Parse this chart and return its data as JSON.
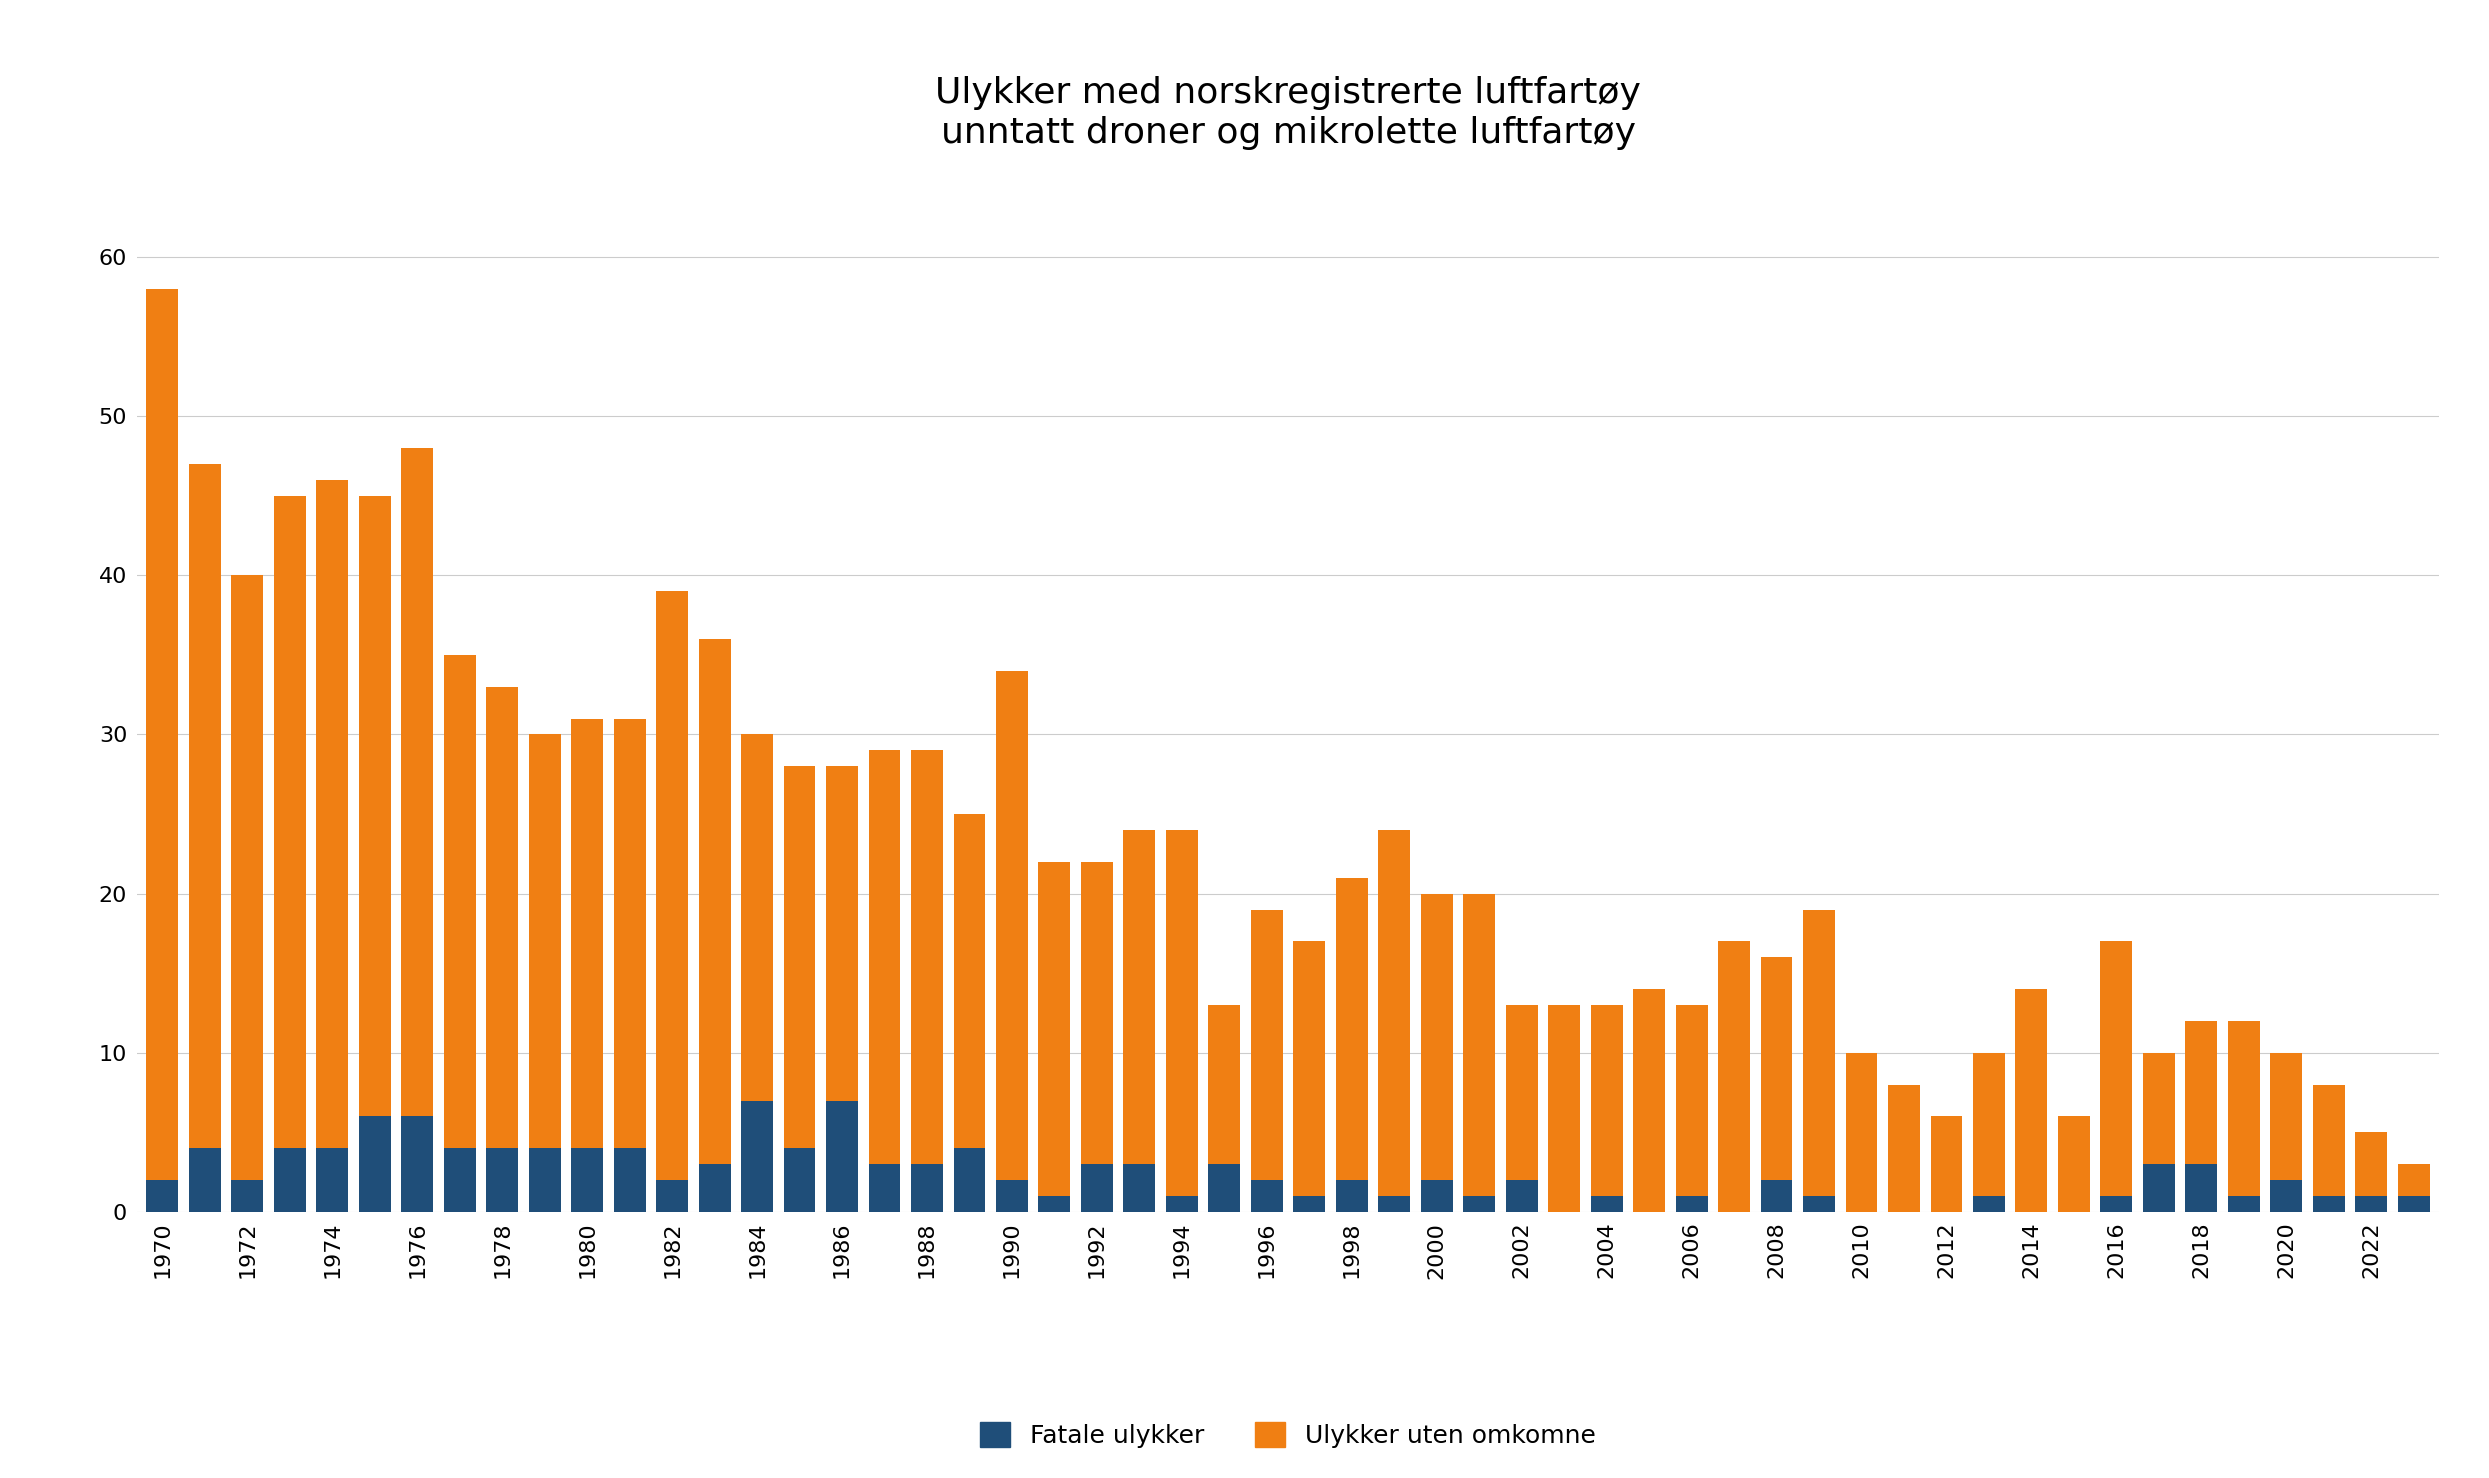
{
  "title": "Ulykker med norskregistrerte luftfartøy\nunntatt droner og mikrolette luftfartøy",
  "years": [
    1970,
    1971,
    1972,
    1973,
    1974,
    1975,
    1976,
    1977,
    1978,
    1979,
    1980,
    1981,
    1982,
    1983,
    1984,
    1985,
    1986,
    1987,
    1988,
    1989,
    1990,
    1991,
    1992,
    1993,
    1994,
    1995,
    1996,
    1997,
    1998,
    1999,
    2000,
    2001,
    2002,
    2003,
    2004,
    2005,
    2006,
    2007,
    2008,
    2009,
    2010,
    2011,
    2012,
    2013,
    2014,
    2015,
    2016,
    2017,
    2018,
    2019,
    2020,
    2021,
    2022,
    2023
  ],
  "fatal": [
    2,
    4,
    2,
    4,
    4,
    6,
    6,
    4,
    4,
    4,
    4,
    4,
    2,
    3,
    7,
    4,
    7,
    3,
    3,
    4,
    2,
    1,
    3,
    3,
    1,
    3,
    2,
    1,
    2,
    1,
    2,
    1,
    2,
    0,
    1,
    0,
    1,
    0,
    2,
    1,
    0,
    0,
    0,
    1,
    0,
    0,
    1,
    3,
    3,
    1,
    2,
    1,
    1,
    1
  ],
  "non_fatal": [
    56,
    43,
    38,
    41,
    42,
    39,
    42,
    31,
    29,
    26,
    27,
    27,
    37,
    33,
    23,
    24,
    21,
    26,
    26,
    21,
    32,
    21,
    19,
    21,
    23,
    10,
    17,
    16,
    19,
    23,
    18,
    19,
    11,
    13,
    12,
    14,
    12,
    17,
    14,
    18,
    10,
    8,
    6,
    9,
    14,
    6,
    16,
    7,
    9,
    11,
    8,
    7,
    4,
    2
  ],
  "fatal_color": "#1f4e79",
  "non_fatal_color": "#f07f13",
  "background_color": "#ffffff",
  "ylim": [
    0,
    65
  ],
  "yticks": [
    0,
    10,
    20,
    30,
    40,
    50,
    60
  ],
  "legend_fatal": "Fatale ulykker",
  "legend_non_fatal": "Ulykker uten omkomne",
  "title_fontsize": 26,
  "tick_fontsize": 16,
  "legend_fontsize": 18
}
